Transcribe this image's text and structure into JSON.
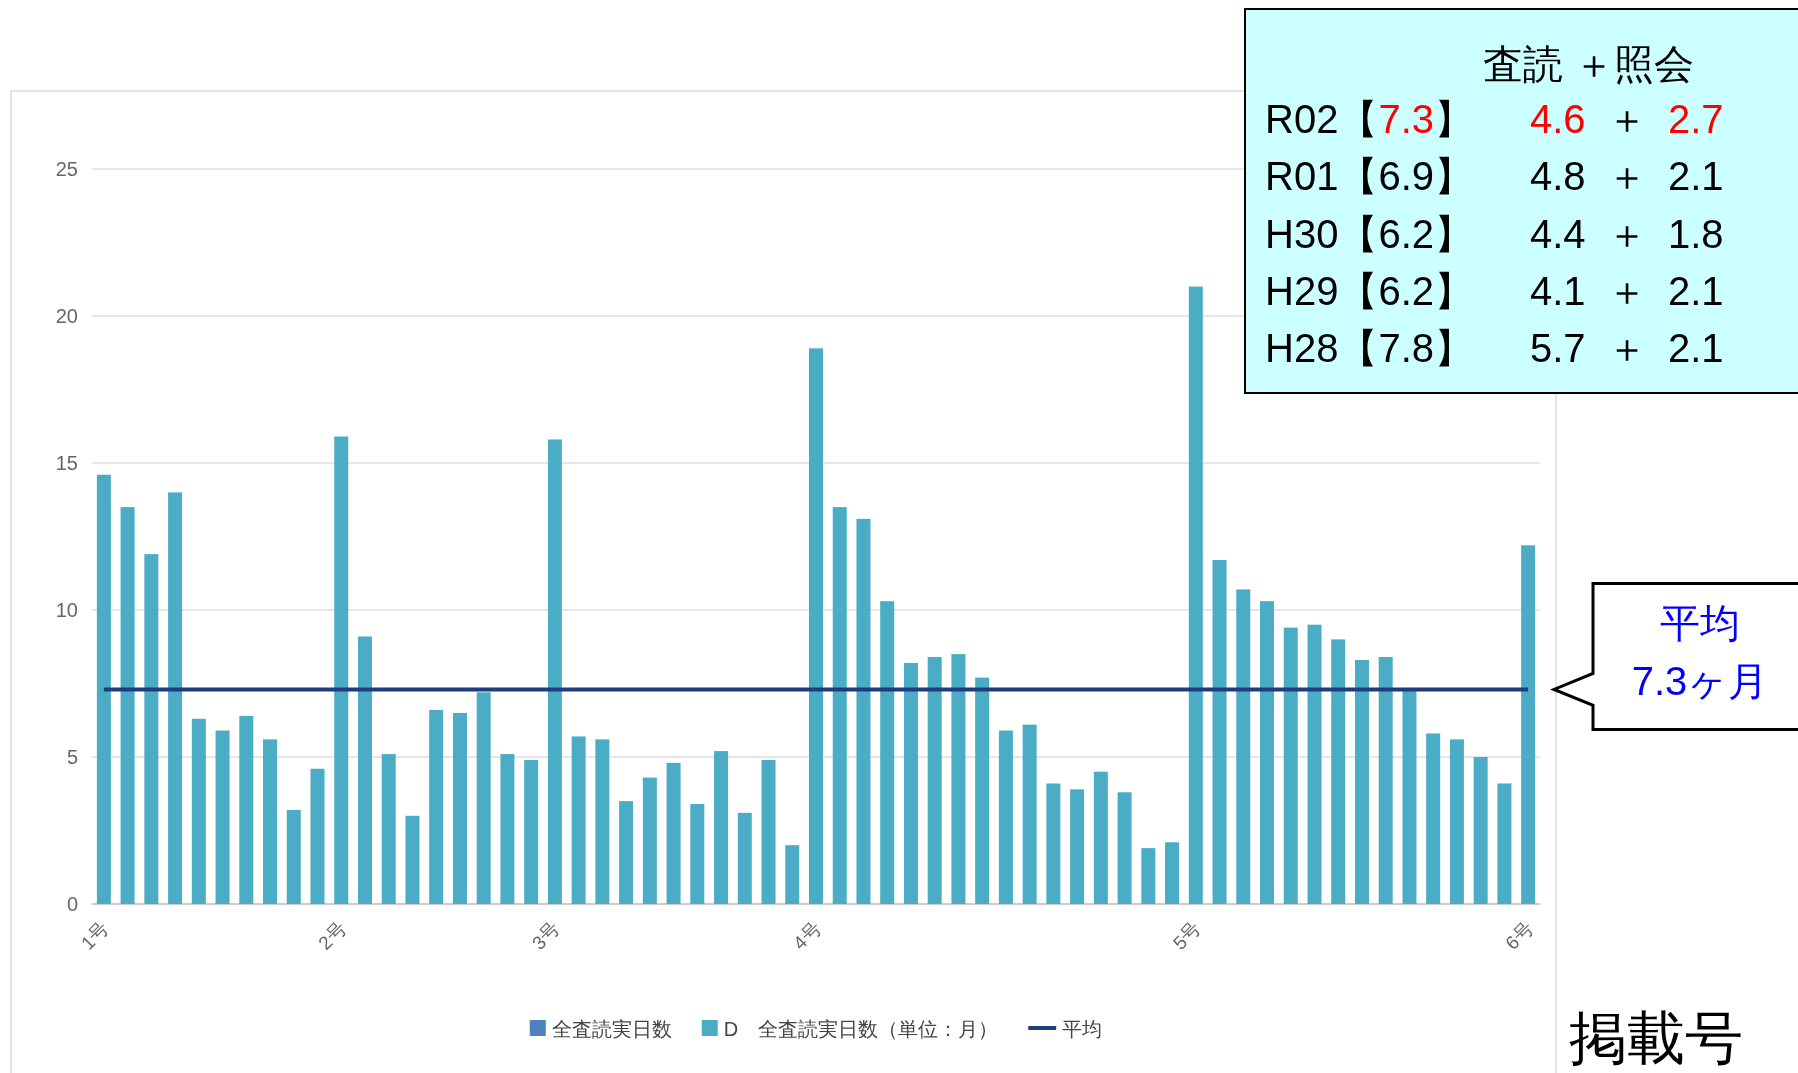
{
  "chart_data": {
    "type": "bar",
    "categories": [
      "1号",
      null,
      null,
      null,
      null,
      null,
      null,
      null,
      null,
      null,
      "2号",
      null,
      null,
      null,
      null,
      null,
      null,
      null,
      null,
      "3号",
      null,
      null,
      null,
      null,
      null,
      null,
      null,
      null,
      null,
      null,
      "4号",
      null,
      null,
      null,
      null,
      null,
      null,
      null,
      null,
      null,
      null,
      null,
      null,
      null,
      null,
      null,
      "5号",
      null,
      null,
      null,
      null,
      null,
      null,
      null,
      null,
      null,
      null,
      null,
      null,
      null,
      "6号"
    ],
    "series": [
      {
        "name": "全査読実日数",
        "color": "#4f81bd",
        "values": [
          null,
          null,
          null,
          null,
          null,
          null,
          null,
          null,
          null,
          null,
          null,
          null,
          null,
          null,
          null,
          null,
          null,
          null,
          null,
          null,
          null,
          null,
          null,
          null,
          null,
          null,
          null,
          null,
          null,
          null,
          null,
          null,
          null,
          null,
          null,
          null,
          null,
          null,
          null,
          null,
          null,
          null,
          null,
          null,
          null,
          null,
          null,
          null,
          null,
          null,
          null,
          null,
          null,
          null,
          null,
          null,
          null,
          null,
          null,
          null,
          null
        ]
      },
      {
        "name": "D　全査読実日数（単位：月）",
        "color": "#4bacc6",
        "values": [
          14.6,
          13.5,
          11.9,
          14.0,
          6.3,
          5.9,
          6.4,
          5.6,
          3.2,
          4.6,
          15.9,
          9.1,
          5.1,
          3.0,
          6.6,
          6.5,
          7.2,
          5.1,
          4.9,
          15.8,
          5.7,
          5.6,
          3.5,
          4.3,
          4.8,
          3.4,
          5.2,
          3.1,
          4.9,
          2.0,
          18.9,
          13.5,
          13.1,
          10.3,
          8.2,
          8.4,
          8.5,
          7.7,
          5.9,
          6.1,
          4.1,
          3.9,
          4.5,
          3.8,
          1.9,
          2.1,
          21.0,
          11.7,
          10.7,
          10.3,
          9.4,
          9.5,
          9.0,
          8.3,
          8.4,
          7.3,
          5.8,
          5.6,
          5.0,
          4.1,
          12.2
        ]
      }
    ],
    "ref_lines": [
      {
        "axis": "y",
        "value": 7.3,
        "label": "平均",
        "color": "#1f3d7c"
      }
    ],
    "xlabel": "掲載号",
    "ylim": [
      0,
      25
    ],
    "yticks": [
      0,
      5,
      10,
      15,
      20,
      25
    ],
    "grid": "y",
    "legend": "bottom",
    "annotations": [
      "平均\n7.3ヶ月",
      "査読 ＋照会",
      "R02【7.3】 4.6 ＋ 2.7",
      "R01【6.9】 4.8 ＋ 2.1",
      "H30【6.2】 4.4 ＋ 1.8",
      "H29【6.2】 4.1 ＋ 2.1",
      "H28【7.8】 5.7 ＋ 2.1"
    ]
  }
}
